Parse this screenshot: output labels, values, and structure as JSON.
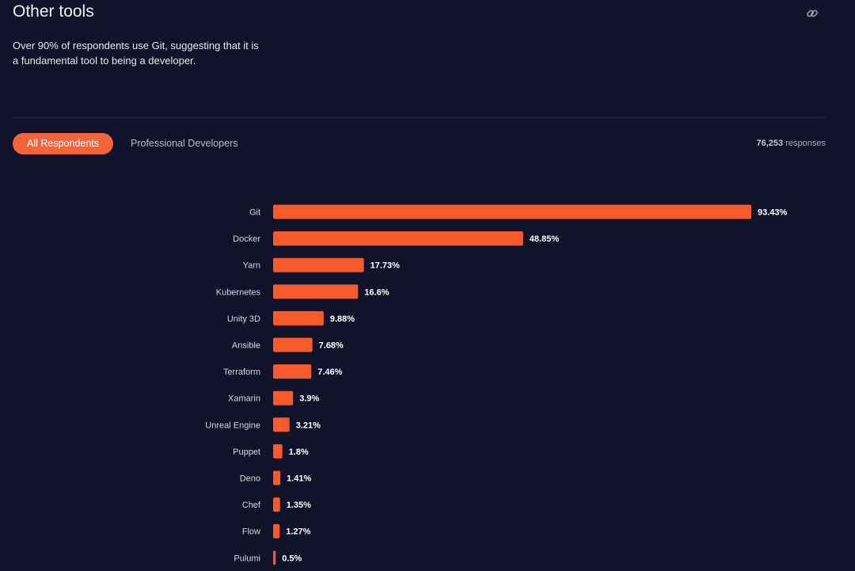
{
  "header": {
    "title": "Other tools",
    "description": "Over 90% of respondents use Git, suggesting that it is a fundamental tool to being a developer.",
    "link_icon": "link-icon"
  },
  "tabs": [
    {
      "label": "All Respondents",
      "active": true
    },
    {
      "label": "Professional Developers",
      "active": false
    }
  ],
  "responses": {
    "count": "76,253",
    "label": "responses"
  },
  "colors": {
    "background": "#10132a",
    "bar": "#f95a2c",
    "accent": "#f4643a"
  },
  "chart_data": {
    "type": "bar",
    "orientation": "horizontal",
    "categories": [
      "Git",
      "Docker",
      "Yarn",
      "Kubernetes",
      "Unity 3D",
      "Ansible",
      "Terraform",
      "Xamarin",
      "Unreal Engine",
      "Puppet",
      "Deno",
      "Chef",
      "Flow",
      "Pulumi"
    ],
    "values": [
      93.43,
      48.85,
      17.73,
      16.6,
      9.88,
      7.68,
      7.46,
      3.9,
      3.21,
      1.8,
      1.41,
      1.35,
      1.27,
      0.5
    ],
    "value_labels": [
      "93.43%",
      "48.85%",
      "17.73%",
      "16.6%",
      "9.88%",
      "7.68%",
      "7.46%",
      "3.9%",
      "3.21%",
      "1.8%",
      "1.41%",
      "1.35%",
      "1.27%",
      "0.5%"
    ],
    "xlim": [
      0,
      93.43
    ],
    "grid": false
  }
}
